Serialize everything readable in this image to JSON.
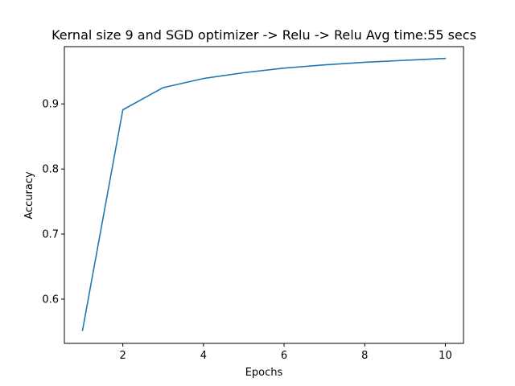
{
  "chart_data": {
    "type": "line",
    "title": "Kernal size 9 and SGD optimizer -> Relu -> Relu Avg time:55 secs",
    "xlabel": "Epochs",
    "ylabel": "Accuracy",
    "xlim": [
      0.55,
      10.45
    ],
    "ylim": [
      0.532,
      0.988
    ],
    "x_ticks": [
      2,
      4,
      6,
      8,
      10
    ],
    "x_tick_labels": [
      "2",
      "4",
      "6",
      "8",
      "10"
    ],
    "y_ticks": [
      0.6,
      0.7,
      0.8,
      0.9
    ],
    "y_tick_labels": [
      "0.6",
      "0.7",
      "0.8",
      "0.9"
    ],
    "grid": false,
    "legend": "none",
    "series": [
      {
        "color": "#1f77b4",
        "x": [
          1,
          2,
          3,
          4,
          5,
          6,
          7,
          8,
          9,
          10
        ],
        "values": [
          0.552,
          0.891,
          0.925,
          0.939,
          0.948,
          0.955,
          0.96,
          0.964,
          0.967,
          0.97
        ]
      }
    ]
  }
}
